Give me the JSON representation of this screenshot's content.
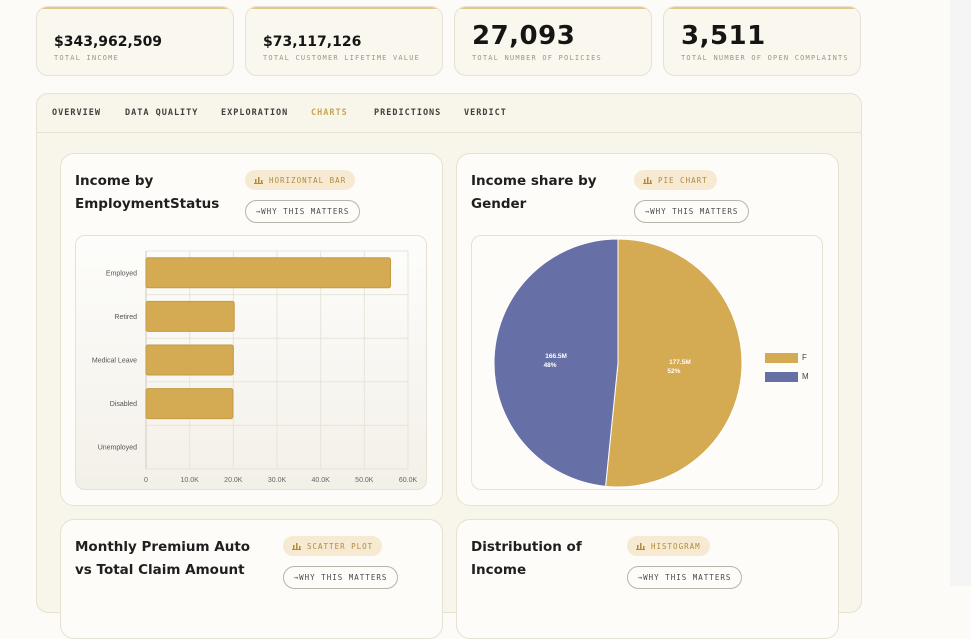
{
  "kpis": [
    {
      "value": "$343,962,509",
      "label": "TOTAL INCOME"
    },
    {
      "value": "$73,117,126",
      "label": "TOTAL CUSTOMER LIFETIME VALUE"
    },
    {
      "value": "27,093",
      "label": "TOTAL NUMBER OF POLICIES"
    },
    {
      "value": "3,511",
      "label": "TOTAL NUMBER OF OPEN COMPLAINTS"
    }
  ],
  "tabs": [
    "OVERVIEW",
    "DATA QUALITY",
    "EXPLORATION",
    "CHARTS",
    "PREDICTIONS",
    "VERDICT"
  ],
  "active_tab": "CHARTS",
  "colors": {
    "accent": "#c9a451",
    "gold_bar": "#d4aa52",
    "blue": "#6670a6",
    "badge_bg": "#f6ead3"
  },
  "cards": [
    {
      "title": "Income by EmploymentStatus",
      "badge": "HORIZONTAL BAR",
      "badge_icon": "bar-chart-icon",
      "why": "→WHY THIS MATTERS"
    },
    {
      "title": "Income share by Gender",
      "badge": "PIE CHART",
      "badge_icon": "bar-chart-icon",
      "why": "→WHY THIS MATTERS"
    },
    {
      "title": "Monthly Premium Auto vs Total Claim Amount",
      "badge": "SCATTER PLOT",
      "badge_icon": "bar-chart-icon",
      "why": "→WHY THIS MATTERS"
    },
    {
      "title": "Distribution of Income",
      "badge": "HISTOGRAM",
      "badge_icon": "bar-chart-icon",
      "why": "→WHY THIS MATTERS"
    }
  ],
  "chart_data": [
    {
      "type": "bar",
      "orientation": "horizontal",
      "categories": [
        "Employed",
        "Retired",
        "Medical Leave",
        "Disabled",
        "Unemployed"
      ],
      "values": [
        56000,
        20200,
        20000,
        19900,
        0
      ],
      "xlim": [
        0,
        60000
      ],
      "xticks": [
        "0",
        "10.0K",
        "20.0K",
        "30.0K",
        "40.0K",
        "50.0K",
        "60.0K"
      ],
      "grid": true,
      "color": "#d4aa52"
    },
    {
      "type": "pie",
      "slices": [
        {
          "name": "F",
          "value": 177.5,
          "label": "177.5M",
          "pct": "52%",
          "color": "#d4aa52"
        },
        {
          "name": "M",
          "value": 166.5,
          "label": "166.5M",
          "pct": "48%",
          "color": "#6670a6"
        }
      ],
      "legend": "right"
    }
  ]
}
